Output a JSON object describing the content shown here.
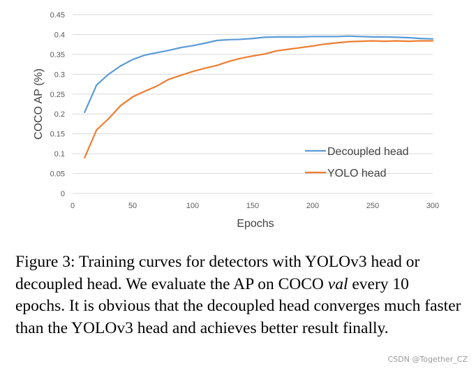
{
  "chart_data": {
    "type": "line",
    "title": "",
    "xlabel": "Epochs",
    "ylabel": "COCO AP (%)",
    "xlim": [
      0,
      300
    ],
    "ylim": [
      0,
      0.45
    ],
    "x_ticks": [
      "0",
      "50",
      "100",
      "150",
      "200",
      "250",
      "300"
    ],
    "y_ticks": [
      "0",
      "0.05",
      "0.1",
      "0.15",
      "0.2",
      "0.25",
      "0.3",
      "0.35",
      "0.4",
      "0.45"
    ],
    "grid": "horizontal",
    "legend_position": "center-right",
    "series": [
      {
        "name": "Decoupled head",
        "color": "#5b9bd5",
        "x": [
          10,
          20,
          30,
          40,
          50,
          60,
          70,
          80,
          90,
          100,
          110,
          120,
          130,
          140,
          150,
          160,
          170,
          180,
          190,
          200,
          210,
          220,
          230,
          240,
          250,
          260,
          270,
          280,
          290,
          300
        ],
        "y": [
          0.204,
          0.273,
          0.3,
          0.321,
          0.337,
          0.348,
          0.354,
          0.36,
          0.367,
          0.372,
          0.378,
          0.385,
          0.387,
          0.388,
          0.39,
          0.393,
          0.394,
          0.394,
          0.394,
          0.395,
          0.395,
          0.395,
          0.396,
          0.395,
          0.394,
          0.394,
          0.393,
          0.392,
          0.39,
          0.389
        ]
      },
      {
        "name": "YOLO head",
        "color": "#ed7d31",
        "x": [
          10,
          20,
          30,
          40,
          50,
          60,
          70,
          80,
          90,
          100,
          110,
          120,
          130,
          140,
          150,
          160,
          170,
          180,
          190,
          200,
          210,
          220,
          230,
          240,
          250,
          260,
          270,
          280,
          290,
          300
        ],
        "y": [
          0.09,
          0.16,
          0.188,
          0.221,
          0.243,
          0.257,
          0.27,
          0.287,
          0.297,
          0.307,
          0.315,
          0.322,
          0.332,
          0.34,
          0.346,
          0.351,
          0.359,
          0.363,
          0.367,
          0.371,
          0.376,
          0.379,
          0.382,
          0.383,
          0.384,
          0.383,
          0.384,
          0.383,
          0.384,
          0.384
        ]
      }
    ]
  },
  "caption": {
    "lead": "Figure 3: Training curves for detectors with YOLOv3 head or decoupled head. We evaluate the AP on COCO ",
    "italic": "val",
    "tail": " every 10 epochs. It is obvious that the decoupled head converges much faster than the YOLOv3 head and achieves better result finally."
  },
  "watermark": "CSDN @Together_CZ"
}
